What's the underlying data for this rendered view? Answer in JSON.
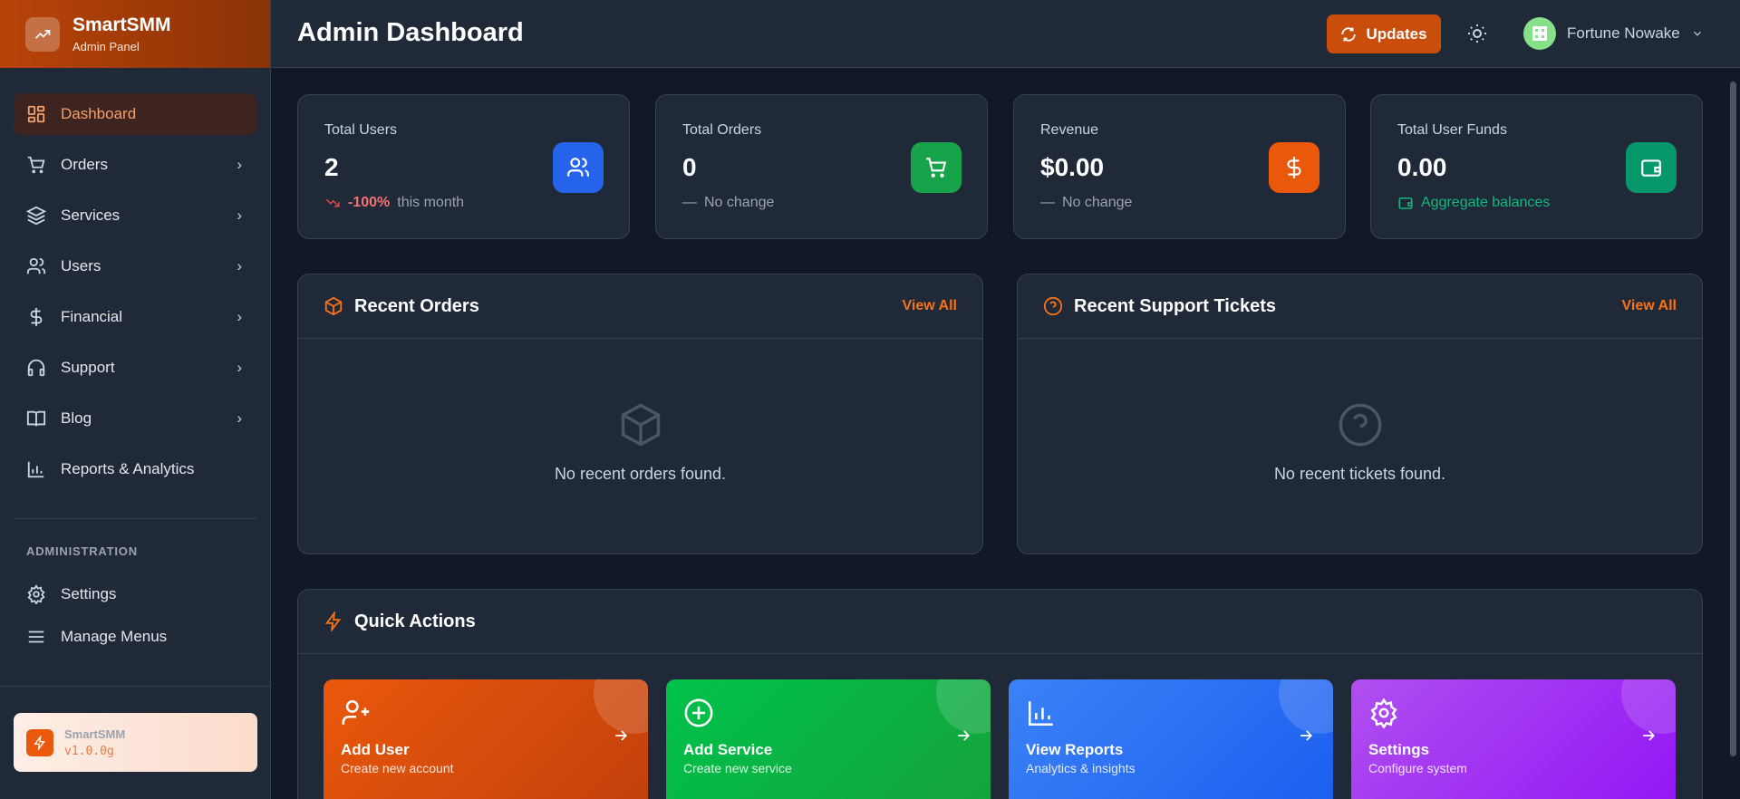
{
  "brand": {
    "name": "SmartSMM",
    "subtitle": "Admin Panel"
  },
  "sidebar": {
    "items": [
      {
        "label": "Dashboard",
        "icon": "dashboard-icon",
        "active": true
      },
      {
        "label": "Orders",
        "icon": "cart-icon"
      },
      {
        "label": "Services",
        "icon": "layers-icon"
      },
      {
        "label": "Users",
        "icon": "users-icon"
      },
      {
        "label": "Financial",
        "icon": "dollar-icon"
      },
      {
        "label": "Support",
        "icon": "headphones-icon"
      },
      {
        "label": "Blog",
        "icon": "book-icon"
      },
      {
        "label": "Reports & Analytics",
        "icon": "bar-chart-icon"
      }
    ],
    "section_label": "ADMINISTRATION",
    "admin_items": [
      {
        "label": "Settings",
        "icon": "gear-icon"
      },
      {
        "label": "Manage Menus",
        "icon": "menu-icon"
      }
    ],
    "version": {
      "name": "SmartSMM",
      "number": "v1.0.0g"
    }
  },
  "header": {
    "title": "Admin Dashboard",
    "updates_label": "Updates",
    "user_name": "Fortune Nowake"
  },
  "stats": [
    {
      "label": "Total Users",
      "value": "2",
      "change": "-100%",
      "change_suffix": "this month",
      "color": "#2563eb"
    },
    {
      "label": "Total Orders",
      "value": "0",
      "change_suffix": "No change",
      "color": "#16a34a"
    },
    {
      "label": "Revenue",
      "value": "$0.00",
      "change_suffix": "No change",
      "color": "#ea580c"
    },
    {
      "label": "Total User Funds",
      "value": "0.00",
      "change_suffix": "Aggregate balances",
      "color": "#059669"
    }
  ],
  "recent_orders": {
    "title": "Recent Orders",
    "view_all": "View All",
    "empty": "No recent orders found."
  },
  "recent_tickets": {
    "title": "Recent Support Tickets",
    "view_all": "View All",
    "empty": "No recent tickets found."
  },
  "quick_actions": {
    "title": "Quick Actions",
    "items": [
      {
        "title": "Add User",
        "subtitle": "Create new account"
      },
      {
        "title": "Add Service",
        "subtitle": "Create new service"
      },
      {
        "title": "View Reports",
        "subtitle": "Analytics & insights"
      },
      {
        "title": "Settings",
        "subtitle": "Configure system"
      }
    ]
  },
  "colors": {
    "accent": "#ea580c",
    "background": "#111827",
    "panel": "#1f2937"
  }
}
